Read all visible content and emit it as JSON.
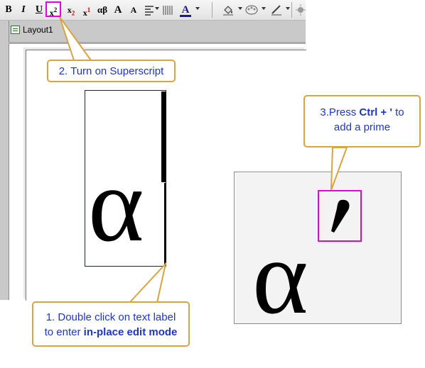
{
  "toolbar": {
    "bold": "B",
    "italic": "I",
    "underline": "U",
    "superscript": "x",
    "superscript_mark": "2",
    "subscript": "x",
    "subscript_mark": "2",
    "supersub": "x",
    "supersub_mark": "1",
    "greek": "αβ",
    "grow_font": "A",
    "shrink_font": "A",
    "font_color": "A",
    "icons": [
      "align-left-icon",
      "bar-pattern-icon",
      "font-color-icon",
      "fill-color-icon",
      "palette-icon",
      "line-color-icon",
      "pattern-icon"
    ]
  },
  "window": {
    "tab_label": "Layout1"
  },
  "labels": {
    "edit_text": "α",
    "result_text": "α"
  },
  "callouts": {
    "step2": "2. Turn on Superscript",
    "step3_prefix": "3.Press ",
    "step3_keys": "Ctrl + '",
    "step3_mid": " to",
    "step3_line2": "add a prime",
    "step1_line1": "1. Double click on text label",
    "step1_line2_prefix": "to enter ",
    "step1_line2_bold": "in-place edit mode"
  },
  "colors": {
    "highlight": "#e000e0",
    "callout_border": "#d9a441",
    "callout_text": "#1f35c4"
  }
}
